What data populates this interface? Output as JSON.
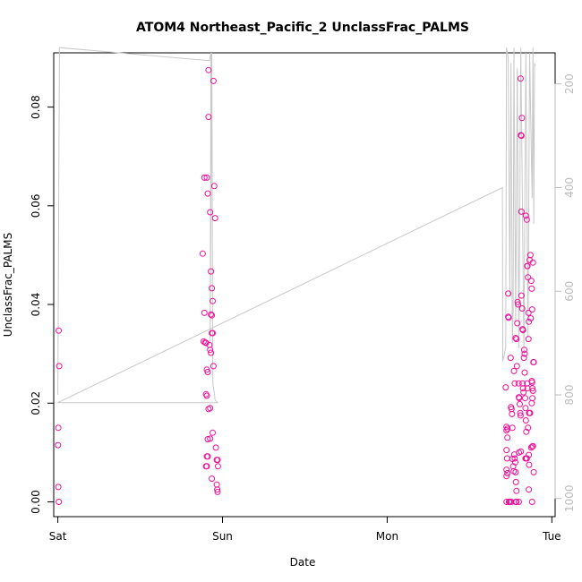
{
  "chart_data": {
    "type": "scatter",
    "title": "ATOM4 Northeast_Pacific_2 UnclassFrac_PALMS",
    "xlabel": "Date",
    "ylabel": "UnclassFrac_PALMS",
    "x_unit": "days",
    "xlim": [
      -0.025,
      3.02
    ],
    "ylim": [
      -0.003,
      0.091
    ],
    "x_ticks": [
      0,
      1,
      2,
      3
    ],
    "x_tick_labels": [
      "Sat",
      "Sun",
      "Mon",
      "Tue"
    ],
    "y_ticks": [
      0.0,
      0.02,
      0.04,
      0.06,
      0.08
    ],
    "y_tick_labels": [
      "0.00",
      "0.02",
      "0.04",
      "0.06",
      "0.08"
    ],
    "y2_lim": [
      1035,
      140
    ],
    "y2_ticks": [
      200,
      400,
      600,
      800,
      1000
    ],
    "y2_tick_labels": [
      "200",
      "400",
      "600",
      "800",
      "1000"
    ],
    "grid": false,
    "colors": {
      "points": "#ee1199",
      "line": "#c8c8c8",
      "axis": "#000000",
      "axis2": "#bbbbbb"
    },
    "series": [
      {
        "kind": "points",
        "points": [
          [
            0.005,
            0.0347
          ],
          [
            0.008,
            0.0275
          ],
          [
            0.003,
            0.015
          ],
          [
            0.001,
            0.0115
          ],
          [
            0.003,
            0.003
          ],
          [
            0.006,
            0.0
          ],
          [
            0.88,
            0.0503
          ],
          [
            0.89,
            0.0383
          ],
          [
            0.885,
            0.0325
          ],
          [
            0.895,
            0.0323
          ],
          [
            0.9,
            0.0322
          ],
          [
            0.905,
            0.0268
          ],
          [
            0.91,
            0.0263
          ],
          [
            0.9,
            0.0218
          ],
          [
            0.905,
            0.0215
          ],
          [
            0.89,
            0.0657
          ],
          [
            0.905,
            0.0657
          ],
          [
            0.91,
            0.0625
          ],
          [
            0.915,
            0.0875
          ],
          [
            0.915,
            0.078
          ],
          [
            0.925,
            0.0587
          ],
          [
            0.93,
            0.0467
          ],
          [
            0.935,
            0.0433
          ],
          [
            0.94,
            0.0407
          ],
          [
            0.93,
            0.038
          ],
          [
            0.935,
            0.0378
          ],
          [
            0.935,
            0.0342
          ],
          [
            0.94,
            0.0342
          ],
          [
            0.92,
            0.0318
          ],
          [
            0.925,
            0.0308
          ],
          [
            0.93,
            0.0302
          ],
          [
            0.945,
            0.0275
          ],
          [
            0.925,
            0.019
          ],
          [
            0.915,
            0.0188
          ],
          [
            0.94,
            0.014
          ],
          [
            0.91,
            0.0127
          ],
          [
            0.925,
            0.0128
          ],
          [
            0.905,
            0.0092
          ],
          [
            0.91,
            0.0092
          ],
          [
            0.9,
            0.0072
          ],
          [
            0.905,
            0.0072
          ],
          [
            0.935,
            0.0047
          ],
          [
            0.945,
            0.0853
          ],
          [
            0.95,
            0.064
          ],
          [
            0.955,
            0.0575
          ],
          [
            0.96,
            0.011
          ],
          [
            0.965,
            0.0085
          ],
          [
            0.97,
            0.0085
          ],
          [
            0.965,
            0.0035
          ],
          [
            0.97,
            0.002
          ],
          [
            0.968,
            0.0025
          ],
          [
            0.972,
            0.0072
          ],
          [
            2.72,
            0.0232
          ],
          [
            2.725,
            0.0152
          ],
          [
            2.73,
            0.0148
          ],
          [
            2.725,
            0.0145
          ],
          [
            2.73,
            0.013
          ],
          [
            2.735,
            0.0422
          ],
          [
            2.735,
            0.0375
          ],
          [
            2.738,
            0.0373
          ],
          [
            2.725,
            0.0105
          ],
          [
            2.728,
            0.0088
          ],
          [
            2.725,
            0.0065
          ],
          [
            2.73,
            0.0058
          ],
          [
            2.725,
            0.0052
          ],
          [
            2.74,
            0.0
          ],
          [
            2.725,
            0.0
          ],
          [
            2.74,
            0.0
          ],
          [
            2.742,
            0.0
          ],
          [
            2.748,
            0.0
          ],
          [
            2.752,
            0.0
          ],
          [
            2.75,
            0.0292
          ],
          [
            2.752,
            0.0192
          ],
          [
            2.755,
            0.0188
          ],
          [
            2.758,
            0.0178
          ],
          [
            2.76,
            0.015
          ],
          [
            2.76,
            0.0087
          ],
          [
            2.765,
            0.0072
          ],
          [
            2.768,
            0.0062
          ],
          [
            2.77,
            0.0265
          ],
          [
            2.775,
            0.024
          ],
          [
            2.772,
            0.0096
          ],
          [
            2.775,
            0.0088
          ],
          [
            2.778,
            0.008
          ],
          [
            2.78,
            0.006
          ],
          [
            2.782,
            0.004
          ],
          [
            2.785,
            0.0022
          ],
          [
            2.78,
            0.0
          ],
          [
            2.785,
            0.0
          ],
          [
            2.78,
            0.0332
          ],
          [
            2.785,
            0.033
          ],
          [
            2.788,
            0.0275
          ],
          [
            2.79,
            0.0362
          ],
          [
            2.792,
            0.0405
          ],
          [
            2.795,
            0.04
          ],
          [
            2.798,
            0.024
          ],
          [
            2.8,
            0.0212
          ],
          [
            2.802,
            0.021
          ],
          [
            2.805,
            0.0198
          ],
          [
            2.808,
            0.018
          ],
          [
            2.81,
            0.0175
          ],
          [
            2.812,
            0.0102
          ],
          [
            2.8,
            0.01
          ],
          [
            2.8,
            0.0
          ],
          [
            2.81,
            0.0858
          ],
          [
            2.812,
            0.0743
          ],
          [
            2.815,
            0.0742
          ],
          [
            2.815,
            0.0588
          ],
          [
            2.818,
            0.0778
          ],
          [
            2.815,
            0.0418
          ],
          [
            2.82,
            0.0392
          ],
          [
            2.822,
            0.035
          ],
          [
            2.825,
            0.0348
          ],
          [
            2.822,
            0.024
          ],
          [
            2.825,
            0.023
          ],
          [
            2.828,
            0.0222
          ],
          [
            2.83,
            0.0292
          ],
          [
            2.832,
            0.0308
          ],
          [
            2.835,
            0.03
          ],
          [
            2.835,
            0.0262
          ],
          [
            2.838,
            0.021
          ],
          [
            2.84,
            0.019
          ],
          [
            2.842,
            0.0165
          ],
          [
            2.84,
            0.0088
          ],
          [
            2.845,
            0.0088
          ],
          [
            2.848,
            0.0088
          ],
          [
            2.842,
            0.058
          ],
          [
            2.848,
            0.0572
          ],
          [
            2.85,
            0.0478
          ],
          [
            2.852,
            0.0478
          ],
          [
            2.855,
            0.0455
          ],
          [
            2.858,
            0.0383
          ],
          [
            2.86,
            0.0365
          ],
          [
            2.858,
            0.033
          ],
          [
            2.862,
            0.018
          ],
          [
            2.865,
            0.018
          ],
          [
            2.868,
            0.018
          ],
          [
            2.855,
            0.015
          ],
          [
            2.845,
            0.0142
          ],
          [
            2.86,
            0.0095
          ],
          [
            2.862,
            0.0075
          ],
          [
            2.86,
            0.0025
          ],
          [
            2.852,
            0.023
          ],
          [
            2.85,
            0.024
          ],
          [
            2.865,
            0.049
          ],
          [
            2.87,
            0.05
          ],
          [
            2.875,
            0.0448
          ],
          [
            2.878,
            0.0432
          ],
          [
            2.88,
            0.039
          ],
          [
            2.872,
            0.0372
          ],
          [
            2.88,
            0.0242
          ],
          [
            2.878,
            0.0245
          ],
          [
            2.882,
            0.023
          ],
          [
            2.885,
            0.0225
          ],
          [
            2.882,
            0.021
          ],
          [
            2.878,
            0.02
          ],
          [
            2.888,
            0.0283
          ],
          [
            2.89,
            0.0283
          ],
          [
            2.885,
            0.0485
          ],
          [
            2.88,
            0.0112
          ],
          [
            2.875,
            0.011
          ],
          [
            2.885,
            0.0113
          ],
          [
            2.88,
            0.0
          ],
          [
            2.89,
            0.006
          ]
        ]
      },
      {
        "kind": "line",
        "axis": "right",
        "points": [
          [
            0.0,
            800
          ],
          [
            0.01,
            130
          ],
          [
            0.92,
            155
          ],
          [
            0.93,
            140
          ],
          [
            0.925,
            700
          ],
          [
            0.935,
            140
          ],
          [
            0.94,
            720
          ],
          [
            0.942,
            780
          ],
          [
            0.95,
            795
          ],
          [
            0.955,
            810
          ],
          [
            0.97,
            815
          ],
          [
            0.97,
            815
          ],
          [
            0.0,
            815
          ],
          [
            2.7,
            400
          ],
          [
            2.702,
            735
          ],
          [
            2.72,
            710
          ],
          [
            2.725,
            130
          ],
          [
            2.735,
            150
          ],
          [
            2.745,
            610
          ],
          [
            2.752,
            160
          ],
          [
            2.76,
            700
          ],
          [
            2.765,
            640
          ],
          [
            2.77,
            130
          ],
          [
            2.78,
            660
          ],
          [
            2.79,
            170
          ],
          [
            2.8,
            710
          ],
          [
            2.812,
            130
          ],
          [
            2.83,
            720
          ],
          [
            2.842,
            140
          ],
          [
            2.855,
            690
          ],
          [
            2.865,
            140
          ],
          [
            2.88,
            420
          ],
          [
            2.885,
            130
          ],
          [
            2.89,
            470
          ],
          [
            2.895,
            160
          ],
          [
            2.9,
            165
          ]
        ]
      }
    ]
  }
}
